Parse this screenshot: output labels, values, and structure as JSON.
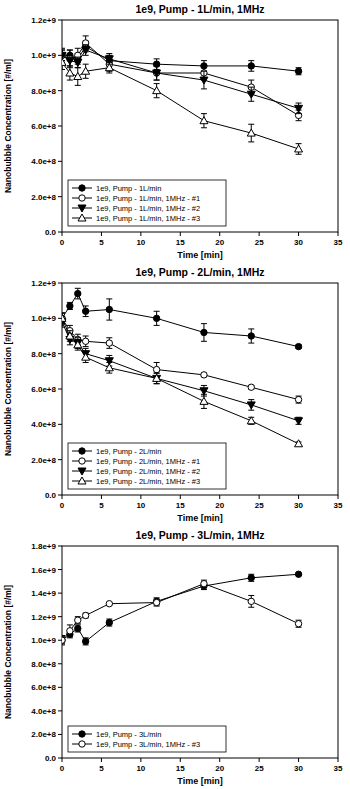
{
  "chart_data": [
    {
      "type": "line",
      "title": "1e9, Pump - 1L/min, 1MHz",
      "x_label": "Time [min]",
      "y_label": "Nanobubble Concentration [#/ml]",
      "x": [
        0,
        1,
        2,
        3,
        6,
        12,
        18,
        24,
        30
      ],
      "xlim": [
        0,
        35
      ],
      "xticks": [
        0,
        5,
        10,
        15,
        20,
        25,
        30,
        35
      ],
      "ylim": [
        0,
        1200000000
      ],
      "yticks": [
        {
          "value": 0,
          "label": "0.0"
        },
        {
          "value": 200000000,
          "label": "2.0e+8"
        },
        {
          "value": 400000000,
          "label": "4.0e+8"
        },
        {
          "value": 600000000,
          "label": "6.0e+8"
        },
        {
          "value": 800000000,
          "label": "8.0e+8"
        },
        {
          "value": 1000000000,
          "label": "1.0e+9"
        },
        {
          "value": 1200000000,
          "label": "1.2e+9"
        }
      ],
      "grid": false,
      "legend": "lower left",
      "series": [
        {
          "name": "1e9, Pump - 1L/min",
          "color": "#000000",
          "marker": "circle",
          "values": [
            1000000000,
            1000000000,
            980000000,
            1050000000,
            970000000,
            950000000,
            940000000,
            940000000,
            910000000
          ],
          "errors": [
            30000000,
            30000000,
            30000000,
            30000000,
            30000000,
            30000000,
            30000000,
            30000000,
            20000000
          ]
        },
        {
          "name": "1e9, Pump - 1L/min, 1MHz - #1",
          "color": "#000000",
          "marker": "circle-open",
          "values": [
            1000000000,
            980000000,
            1000000000,
            1070000000,
            950000000,
            900000000,
            900000000,
            820000000,
            660000000
          ],
          "errors": [
            40000000,
            50000000,
            40000000,
            40000000,
            40000000,
            40000000,
            40000000,
            40000000,
            30000000
          ]
        },
        {
          "name": "1e9, Pump - 1L/min, 1MHz - #2",
          "color": "#000000",
          "marker": "triangle-down",
          "values": [
            1000000000,
            970000000,
            960000000,
            1030000000,
            980000000,
            900000000,
            860000000,
            780000000,
            700000000
          ],
          "errors": [
            30000000,
            30000000,
            30000000,
            30000000,
            30000000,
            40000000,
            50000000,
            40000000,
            30000000
          ]
        },
        {
          "name": "1e9, Pump - 1L/min, 1MHz - #3",
          "color": "#000000",
          "marker": "triangle-up-open",
          "values": [
            960000000,
            900000000,
            880000000,
            910000000,
            930000000,
            800000000,
            630000000,
            560000000,
            470000000
          ],
          "errors": [
            40000000,
            40000000,
            50000000,
            40000000,
            30000000,
            40000000,
            40000000,
            50000000,
            30000000
          ]
        }
      ]
    },
    {
      "type": "line",
      "title": "1e9, Pump - 2L/min, 1MHz",
      "x_label": "Time [min]",
      "y_label": "Nanobubble Concentration [#/ml]",
      "x": [
        0,
        1,
        2,
        3,
        6,
        12,
        18,
        24,
        30
      ],
      "xlim": [
        0,
        35
      ],
      "xticks": [
        0,
        5,
        10,
        15,
        20,
        25,
        30,
        35
      ],
      "ylim": [
        0,
        1200000000
      ],
      "yticks": [
        {
          "value": 0,
          "label": "0.0"
        },
        {
          "value": 200000000,
          "label": "2.0e+8"
        },
        {
          "value": 400000000,
          "label": "4.0e+8"
        },
        {
          "value": 600000000,
          "label": "6.0e+8"
        },
        {
          "value": 800000000,
          "label": "8.0e+8"
        },
        {
          "value": 1000000000,
          "label": "1.0e+9"
        },
        {
          "value": 1200000000,
          "label": "1.2e+9"
        }
      ],
      "grid": false,
      "legend": "lower left",
      "series": [
        {
          "name": "1e9, Pump - 2L/min",
          "color": "#000000",
          "marker": "circle",
          "values": [
            1000000000,
            1070000000,
            1140000000,
            1040000000,
            1050000000,
            1000000000,
            920000000,
            900000000,
            840000000
          ],
          "errors": [
            30000000,
            20000000,
            30000000,
            30000000,
            60000000,
            40000000,
            50000000,
            40000000,
            10000000
          ]
        },
        {
          "name": "1e9, Pump - 2L/min, 1MHz - #1",
          "color": "#000000",
          "marker": "circle-open",
          "values": [
            1000000000,
            930000000,
            880000000,
            870000000,
            860000000,
            710000000,
            680000000,
            610000000,
            540000000
          ],
          "errors": [
            30000000,
            30000000,
            30000000,
            30000000,
            30000000,
            40000000,
            10000000,
            10000000,
            20000000
          ]
        },
        {
          "name": "1e9, Pump - 2L/min, 1MHz - #2",
          "color": "#000000",
          "marker": "triangle-down",
          "values": [
            980000000,
            880000000,
            860000000,
            800000000,
            760000000,
            660000000,
            590000000,
            510000000,
            420000000
          ],
          "errors": [
            30000000,
            30000000,
            30000000,
            30000000,
            30000000,
            30000000,
            30000000,
            30000000,
            20000000
          ]
        },
        {
          "name": "1e9, Pump - 2L/min, 1MHz - #3",
          "color": "#000000",
          "marker": "triangle-up-open",
          "values": [
            1000000000,
            900000000,
            850000000,
            780000000,
            720000000,
            660000000,
            530000000,
            420000000,
            290000000
          ],
          "errors": [
            30000000,
            30000000,
            30000000,
            30000000,
            30000000,
            30000000,
            40000000,
            20000000,
            10000000
          ]
        }
      ]
    },
    {
      "type": "line",
      "title": "1e9, Pump - 3L/min, 1MHz",
      "x_label": "Time [min]",
      "y_label": "Nanobubble Concentration [#/ml]",
      "x": [
        0,
        1,
        2,
        3,
        6,
        12,
        18,
        24,
        30
      ],
      "xlim": [
        0,
        35
      ],
      "xticks": [
        0,
        5,
        10,
        15,
        20,
        25,
        30,
        35
      ],
      "ylim": [
        0,
        1800000000
      ],
      "yticks": [
        {
          "value": 0,
          "label": "0.0"
        },
        {
          "value": 200000000,
          "label": "2.0e+8"
        },
        {
          "value": 400000000,
          "label": "4.0e+8"
        },
        {
          "value": 600000000,
          "label": "6.0e+8"
        },
        {
          "value": 800000000,
          "label": "8.0e+8"
        },
        {
          "value": 1000000000,
          "label": "1.0e+9"
        },
        {
          "value": 1200000000,
          "label": "1.2e+9"
        },
        {
          "value": 1400000000,
          "label": "1.4e+9"
        },
        {
          "value": 1600000000,
          "label": "1.6e+9"
        },
        {
          "value": 1800000000,
          "label": "1.8e+9"
        }
      ],
      "grid": false,
      "legend": "lower left",
      "series": [
        {
          "name": "1e9, Pump - 3L/min",
          "color": "#000000",
          "marker": "circle",
          "values": [
            1000000000,
            1050000000,
            1100000000,
            990000000,
            1150000000,
            1330000000,
            1460000000,
            1530000000,
            1560000000
          ],
          "errors": [
            30000000,
            30000000,
            30000000,
            30000000,
            30000000,
            30000000,
            30000000,
            30000000,
            10000000
          ]
        },
        {
          "name": "1e9, Pump - 3L/min, 1MHz - #3",
          "color": "#000000",
          "marker": "circle-open",
          "values": [
            1000000000,
            1080000000,
            1170000000,
            1210000000,
            1310000000,
            1320000000,
            1480000000,
            1330000000,
            1140000000
          ],
          "errors": [
            40000000,
            50000000,
            30000000,
            20000000,
            10000000,
            30000000,
            30000000,
            50000000,
            30000000
          ]
        }
      ]
    }
  ]
}
